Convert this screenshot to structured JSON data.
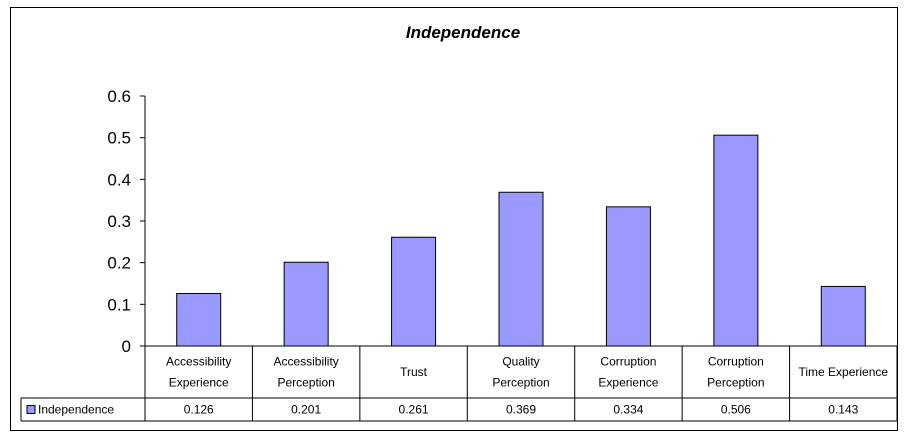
{
  "chart_data": {
    "type": "bar",
    "title": "Independence",
    "categories": [
      [
        "Accessibility",
        "Experience"
      ],
      [
        "Accessibility",
        "Perception"
      ],
      [
        "Trust"
      ],
      [
        "Quality",
        "Perception"
      ],
      [
        "Corruption",
        "Experience"
      ],
      [
        "Corruption",
        "Perception"
      ],
      [
        "Time Experience"
      ]
    ],
    "series": [
      {
        "name": "Independence",
        "values": [
          0.126,
          0.201,
          0.261,
          0.369,
          0.334,
          0.506,
          0.143
        ],
        "color": "#9999ff"
      }
    ],
    "value_labels": [
      "0.126",
      "0.201",
      "0.261",
      "0.369",
      "0.334",
      "0.506",
      "0.143"
    ],
    "ylim": [
      0,
      0.6
    ],
    "yticks": [
      "0",
      "0.1",
      "0.2",
      "0.3",
      "0.4",
      "0.5",
      "0.6"
    ],
    "grid": false,
    "legend": "data-table-left",
    "data_table": true
  }
}
